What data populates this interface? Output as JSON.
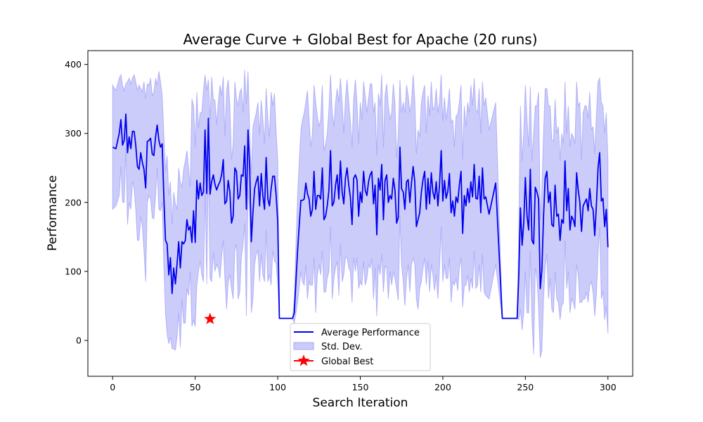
{
  "chart_data": {
    "type": "line",
    "title": "Average Curve + Global Best for Apache (20 runs)",
    "xlabel": "Search Iteration",
    "ylabel": "Performance",
    "xlim": [
      -15,
      315
    ],
    "ylim": [
      -52,
      420
    ],
    "x_ticks": [
      "0",
      "50",
      "100",
      "150",
      "200",
      "250",
      "300"
    ],
    "y_ticks": [
      "0",
      "100",
      "200",
      "300",
      "400"
    ],
    "grid": false,
    "legend_position": "lower-center",
    "colors": {
      "line": "#0000ee",
      "band": "#7f7ff5",
      "best": "#ff0000"
    },
    "series": [
      {
        "name": "Average Performance",
        "x": [
          0,
          2,
          4,
          5,
          6,
          7,
          8,
          9,
          10,
          11,
          12,
          13,
          14,
          15,
          16,
          17,
          18,
          19,
          20,
          21,
          22,
          23,
          24,
          25,
          26,
          27,
          28,
          29,
          30,
          31,
          32,
          33,
          34,
          35,
          36,
          37,
          38,
          39,
          40,
          41,
          42,
          43,
          44,
          45,
          46,
          47,
          48,
          49,
          50,
          51,
          52,
          53,
          54,
          55,
          56,
          57,
          58,
          59,
          60,
          61,
          62,
          63,
          64,
          65,
          66,
          67,
          68,
          69,
          70,
          71,
          72,
          73,
          74,
          75,
          76,
          77,
          78,
          79,
          80,
          81,
          82,
          83,
          84,
          85,
          86,
          87,
          88,
          89,
          90,
          91,
          92,
          93,
          94,
          95,
          96,
          97,
          98,
          99,
          100,
          101,
          103,
          106,
          109,
          110,
          112,
          114,
          115,
          116,
          117,
          118,
          119,
          120,
          121,
          122,
          123,
          124,
          125,
          126,
          127,
          128,
          129,
          130,
          131,
          132,
          133,
          134,
          135,
          136,
          137,
          138,
          139,
          140,
          141,
          142,
          143,
          144,
          145,
          146,
          147,
          148,
          149,
          150,
          151,
          152,
          153,
          154,
          155,
          156,
          157,
          158,
          159,
          160,
          161,
          162,
          163,
          164,
          165,
          166,
          167,
          168,
          169,
          170,
          171,
          172,
          173,
          174,
          175,
          176,
          177,
          178,
          179,
          180,
          181,
          182,
          183,
          184,
          185,
          186,
          187,
          188,
          189,
          190,
          191,
          192,
          193,
          194,
          195,
          196,
          197,
          198,
          199,
          200,
          201,
          202,
          203,
          204,
          205,
          206,
          207,
          208,
          209,
          210,
          211,
          212,
          213,
          214,
          215,
          216,
          217,
          218,
          219,
          220,
          221,
          222,
          223,
          224,
          225,
          226,
          228,
          232,
          236,
          240,
          242,
          244,
          245,
          246,
          247,
          248,
          249,
          250,
          251,
          252,
          253,
          254,
          255,
          256,
          257,
          258,
          259,
          260,
          261,
          262,
          263,
          264,
          265,
          266,
          267,
          268,
          269,
          270,
          271,
          272,
          273,
          274,
          275,
          276,
          277,
          278,
          279,
          280,
          281,
          282,
          283,
          284,
          285,
          286,
          287,
          288,
          289,
          290,
          291,
          292,
          293,
          294,
          295,
          296,
          297,
          298,
          299,
          300
        ],
        "mean": [
          280,
          278,
          300,
          320,
          283,
          290,
          328,
          272,
          295,
          278,
          303,
          303,
          283,
          252,
          248,
          272,
          258,
          248,
          221,
          288,
          290,
          293,
          270,
          268,
          295,
          312,
          290,
          280,
          285,
          210,
          145,
          140,
          95,
          120,
          68,
          105,
          82,
          110,
          143,
          105,
          143,
          140,
          145,
          175,
          160,
          165,
          142,
          188,
          142,
          232,
          205,
          228,
          210,
          215,
          305,
          213,
          322,
          212,
          230,
          240,
          226,
          218,
          225,
          230,
          240,
          262,
          198,
          202,
          232,
          215,
          170,
          180,
          250,
          245,
          205,
          210,
          240,
          238,
          282,
          190,
          305,
          250,
          143,
          185,
          220,
          230,
          238,
          195,
          242,
          210,
          190,
          265,
          205,
          195,
          220,
          238,
          238,
          212,
          172,
          32,
          32,
          32,
          32,
          40,
          130,
          203,
          203,
          205,
          228,
          213,
          205,
          180,
          190,
          245,
          190,
          210,
          210,
          205,
          250,
          175,
          180,
          195,
          218,
          275,
          195,
          200,
          225,
          240,
          205,
          260,
          215,
          198,
          235,
          250,
          225,
          208,
          168,
          235,
          240,
          233,
          180,
          215,
          200,
          245,
          218,
          210,
          230,
          240,
          245,
          198,
          225,
          153,
          235,
          218,
          255,
          175,
          232,
          240,
          200,
          210,
          205,
          235,
          218,
          170,
          178,
          280,
          220,
          215,
          190,
          230,
          233,
          200,
          228,
          252,
          230,
          165,
          175,
          185,
          215,
          233,
          245,
          190,
          235,
          198,
          243,
          215,
          205,
          230,
          195,
          225,
          275,
          202,
          232,
          206,
          216,
          242,
          185,
          202,
          180,
          208,
          200,
          225,
          245,
          155,
          210,
          195,
          220,
          200,
          230,
          208,
          255,
          206,
          205,
          238,
          185,
          250,
          205,
          208,
          183,
          228,
          32,
          32,
          32,
          32,
          32,
          95,
          192,
          138,
          170,
          236,
          180,
          160,
          248,
          145,
          140,
          222,
          215,
          205,
          75,
          102,
          180,
          235,
          245,
          200,
          215,
          168,
          165,
          225,
          180,
          183,
          145,
          175,
          170,
          260,
          188,
          220,
          160,
          180,
          175,
          165,
          243,
          218,
          200,
          158,
          195,
          200,
          205,
          188,
          220,
          195,
          190,
          152,
          195,
          250,
          272,
          202,
          206,
          165,
          190,
          135
        ],
        "upper": [
          370,
          362,
          380,
          385,
          370,
          362,
          372,
          375,
          380,
          372,
          380,
          385,
          375,
          362,
          370,
          365,
          360,
          375,
          350,
          372,
          370,
          380,
          355,
          360,
          380,
          370,
          390,
          375,
          355,
          300,
          245,
          268,
          210,
          230,
          168,
          215,
          198,
          190,
          250,
          230,
          222,
          248,
          260,
          275,
          250,
          222,
          350,
          340,
          280,
          360,
          308,
          330,
          330,
          362,
          385,
          362,
          378,
          320,
          382,
          350,
          348,
          312,
          345,
          370,
          355,
          382,
          296,
          362,
          378,
          340,
          262,
          285,
          375,
          350,
          340,
          360,
          365,
          330,
          392,
          342,
          390,
          300,
          240,
          310,
          320,
          330,
          345,
          298,
          348,
          320,
          285,
          365,
          322,
          295,
          360,
          340,
          358,
          305,
          260,
          32,
          32,
          32,
          32,
          60,
          210,
          305,
          320,
          330,
          345,
          362,
          320,
          280,
          300,
          370,
          345,
          325,
          310,
          320,
          370,
          275,
          285,
          300,
          335,
          385,
          330,
          310,
          345,
          365,
          345,
          380,
          345,
          300,
          350,
          378,
          345,
          318,
          280,
          350,
          378,
          345,
          285,
          345,
          320,
          375,
          355,
          330,
          350,
          372,
          372,
          330,
          345,
          268,
          358,
          340,
          385,
          280,
          355,
          372,
          340,
          320,
          330,
          372,
          345,
          265,
          298,
          378,
          330,
          345,
          330,
          370,
          355,
          330,
          345,
          385,
          350,
          270,
          305,
          295,
          345,
          360,
          370,
          300,
          355,
          325,
          375,
          335,
          338,
          365,
          330,
          345,
          385,
          318,
          352,
          320,
          340,
          365,
          315,
          320,
          280,
          325,
          328,
          345,
          370,
          262,
          340,
          310,
          345,
          330,
          370,
          340,
          380,
          335,
          330,
          365,
          300,
          375,
          340,
          352,
          305,
          345,
          32,
          32,
          32,
          32,
          32,
          160,
          340,
          260,
          300,
          370,
          320,
          280,
          368,
          260,
          300,
          340,
          340,
          360,
          175,
          220,
          300,
          365,
          365,
          340,
          340,
          290,
          290,
          350,
          300,
          310,
          260,
          300,
          285,
          375,
          300,
          340,
          280,
          300,
          295,
          285,
          375,
          340,
          345,
          262,
          330,
          340,
          340,
          322,
          360,
          305,
          310,
          270,
          325,
          375,
          380,
          345,
          340,
          300,
          330,
          260
        ],
        "lower": [
          190,
          195,
          210,
          252,
          200,
          200,
          280,
          168,
          200,
          190,
          230,
          220,
          190,
          145,
          145,
          180,
          165,
          130,
          85,
          200,
          210,
          205,
          178,
          176,
          210,
          250,
          190,
          188,
          200,
          110,
          40,
          10,
          -5,
          5,
          -12,
          -12,
          -14,
          5,
          40,
          -10,
          60,
          25,
          25,
          75,
          65,
          100,
          20,
          30,
          20,
          80,
          100,
          115,
          95,
          85,
          220,
          82,
          260,
          90,
          85,
          128,
          100,
          110,
          105,
          90,
          120,
          145,
          90,
          45,
          85,
          95,
          75,
          60,
          130,
          140,
          60,
          70,
          120,
          140,
          170,
          35,
          220,
          185,
          40,
          60,
          110,
          125,
          130,
          85,
          125,
          95,
          85,
          160,
          85,
          95,
          80,
          130,
          115,
          112,
          82,
          32,
          32,
          32,
          32,
          25,
          55,
          100,
          85,
          80,
          110,
          60,
          85,
          80,
          80,
          120,
          40,
          95,
          110,
          95,
          130,
          70,
          70,
          90,
          100,
          165,
          60,
          90,
          105,
          115,
          65,
          140,
          85,
          95,
          120,
          120,
          105,
          100,
          55,
          120,
          100,
          120,
          75,
          85,
          80,
          115,
          80,
          90,
          110,
          105,
          118,
          60,
          105,
          35,
          110,
          95,
          125,
          70,
          108,
          105,
          60,
          100,
          80,
          100,
          90,
          75,
          58,
          180,
          110,
          85,
          50,
          90,
          110,
          70,
          110,
          120,
          110,
          60,
          45,
          75,
          85,
          105,
          120,
          80,
          115,
          70,
          110,
          95,
          72,
          95,
          60,
          105,
          165,
          85,
          110,
          90,
          90,
          120,
          55,
          85,
          80,
          90,
          72,
          105,
          120,
          48,
          80,
          80,
          95,
          70,
          90,
          75,
          130,
          75,
          80,
          110,
          70,
          125,
          70,
          65,
          60,
          110,
          32,
          32,
          32,
          32,
          32,
          30,
          45,
          15,
          40,
          100,
          40,
          40,
          130,
          30,
          -20,
          105,
          90,
          50,
          -25,
          -15,
          60,
          105,
          125,
          60,
          90,
          45,
          40,
          100,
          60,
          55,
          30,
          50,
          55,
          145,
          75,
          100,
          40,
          60,
          55,
          45,
          110,
          95,
          55,
          55,
          60,
          60,
          70,
          55,
          80,
          85,
          70,
          35,
          65,
          125,
          165,
          60,
          72,
          30,
          50,
          10
        ]
      }
    ],
    "band_name": "Std. Dev.",
    "best_name": "Global Best",
    "global_best": {
      "x": 59,
      "y": 31
    }
  }
}
